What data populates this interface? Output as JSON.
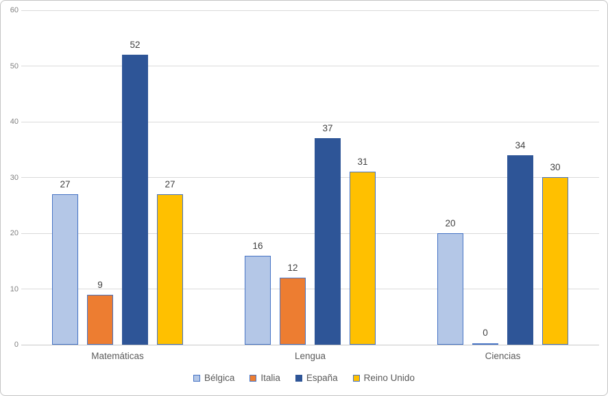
{
  "chart_data": {
    "type": "bar",
    "title": "",
    "categories": [
      "Matemáticas",
      "Lengua",
      "Ciencias"
    ],
    "series": [
      {
        "name": "Bélgica",
        "values": [
          27,
          16,
          20
        ],
        "fill": "#B4C7E7",
        "border": "#4472C4"
      },
      {
        "name": "Italia",
        "values": [
          9,
          12,
          0
        ],
        "fill": "#ED7D31",
        "border": "#4472C4"
      },
      {
        "name": "España",
        "values": [
          52,
          37,
          34
        ],
        "fill": "#2E5597",
        "border": "#2E5597"
      },
      {
        "name": "Reino Unido",
        "values": [
          27,
          31,
          30
        ],
        "fill": "#FFC000",
        "border": "#4472C4"
      }
    ],
    "ylim": [
      0,
      60
    ],
    "yticks": [
      0,
      10,
      20,
      30,
      40,
      50,
      60
    ],
    "grid": true,
    "data_labels": true,
    "legend_position": "bottom"
  },
  "style": {
    "background": "#FFFFFF",
    "chart_border_color": "#C3C3C3",
    "gridline_color": "#D9D9D9",
    "axis_line_color": "#C6C6C6",
    "tick_label_color": "#808080",
    "data_label_color": "#404040",
    "category_label_color": "#595959",
    "legend_text_color": "#595959"
  }
}
